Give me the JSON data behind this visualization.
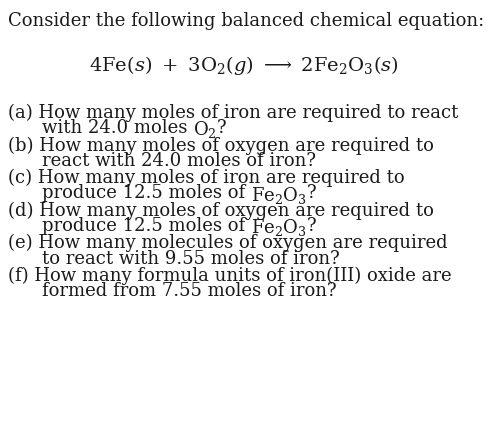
{
  "background_color": "#ffffff",
  "text_color": "#1a1a1a",
  "fig_width": 4.88,
  "fig_height": 4.31,
  "dpi": 100,
  "title_fontsize": 13.0,
  "equation_fontsize": 14.0,
  "body_fontsize": 13.0,
  "title": "Consider the following balanced chemical equation:",
  "equation": "4Fe(s) + 3O_2(g) \\longrightarrow 2Fe_2O_3(s)",
  "lines": [
    [
      "(a) How many moles of iron are required to react",
      "with 24.0 moles O_2?"
    ],
    [
      "(b) How many moles of oxygen are required to",
      "react with 24.0 moles of iron?"
    ],
    [
      "(c) How many moles of iron are required to",
      "produce 12.5 moles of Fe_2O_3?"
    ],
    [
      "(d) How many moles of oxygen are required to",
      "produce 12.5 moles of Fe_2O_3?"
    ],
    [
      "(e) How many molecules of oxygen are required",
      "to react with 9.55 moles of iron?"
    ],
    [
      "(f) How many formula units of iron(III) oxide are",
      "formed from 7.55 moles of iron?"
    ]
  ]
}
